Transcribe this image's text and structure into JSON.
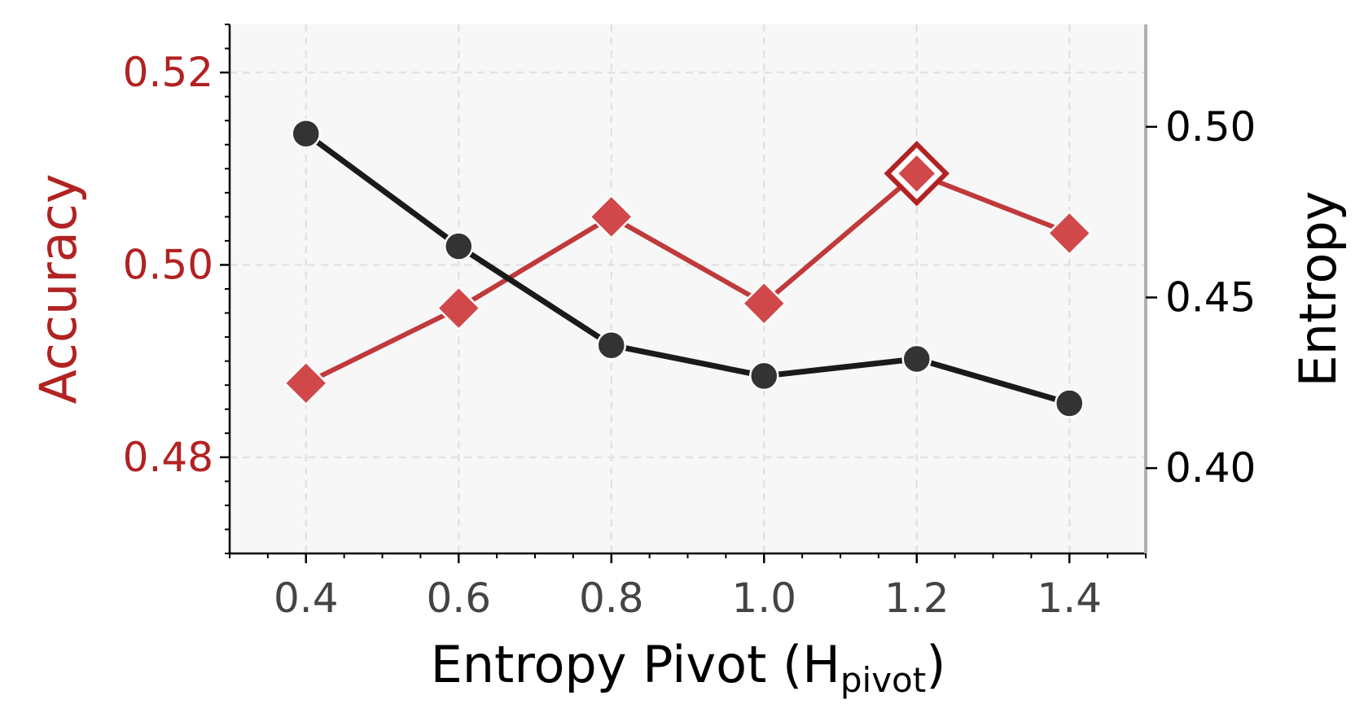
{
  "chart_data": {
    "type": "line",
    "xlabel": "Entropy Pivot (H",
    "xlabel_sub": "pivot",
    "xlabel_close": ")",
    "ylabel_left": "Accuracy",
    "ylabel_right": "Entropy",
    "x": [
      0.4,
      0.6,
      0.8,
      1.0,
      1.2,
      1.4
    ],
    "x_tick_labels": [
      "0.4",
      "0.6",
      "0.8",
      "1.0",
      "1.2",
      "1.4"
    ],
    "xlim": [
      0.3,
      1.5
    ],
    "series": [
      {
        "axis": "left",
        "values": [
          0.4877,
          0.4955,
          0.505,
          0.496,
          0.5095,
          0.5033
        ],
        "marker": "diamond",
        "color": "#c0393b",
        "highlight_index": 4
      },
      {
        "axis": "right",
        "values": [
          0.498,
          0.465,
          0.436,
          0.427,
          0.432,
          0.419
        ],
        "marker": "circle",
        "color": "#1a1a1a"
      }
    ],
    "ylim_left": [
      0.47,
      0.525
    ],
    "ylim_right": [
      0.375,
      0.53
    ],
    "y_left_ticks": [
      "0.48",
      "0.50",
      "0.52"
    ],
    "y_right_ticks": [
      "0.40",
      "0.45",
      "0.50"
    ],
    "grid": true,
    "colors": {
      "accuracy": "#b22222",
      "entropy": "#000000",
      "plot_bg": "#f7f7f7",
      "x_tick_text": "#444444"
    }
  }
}
